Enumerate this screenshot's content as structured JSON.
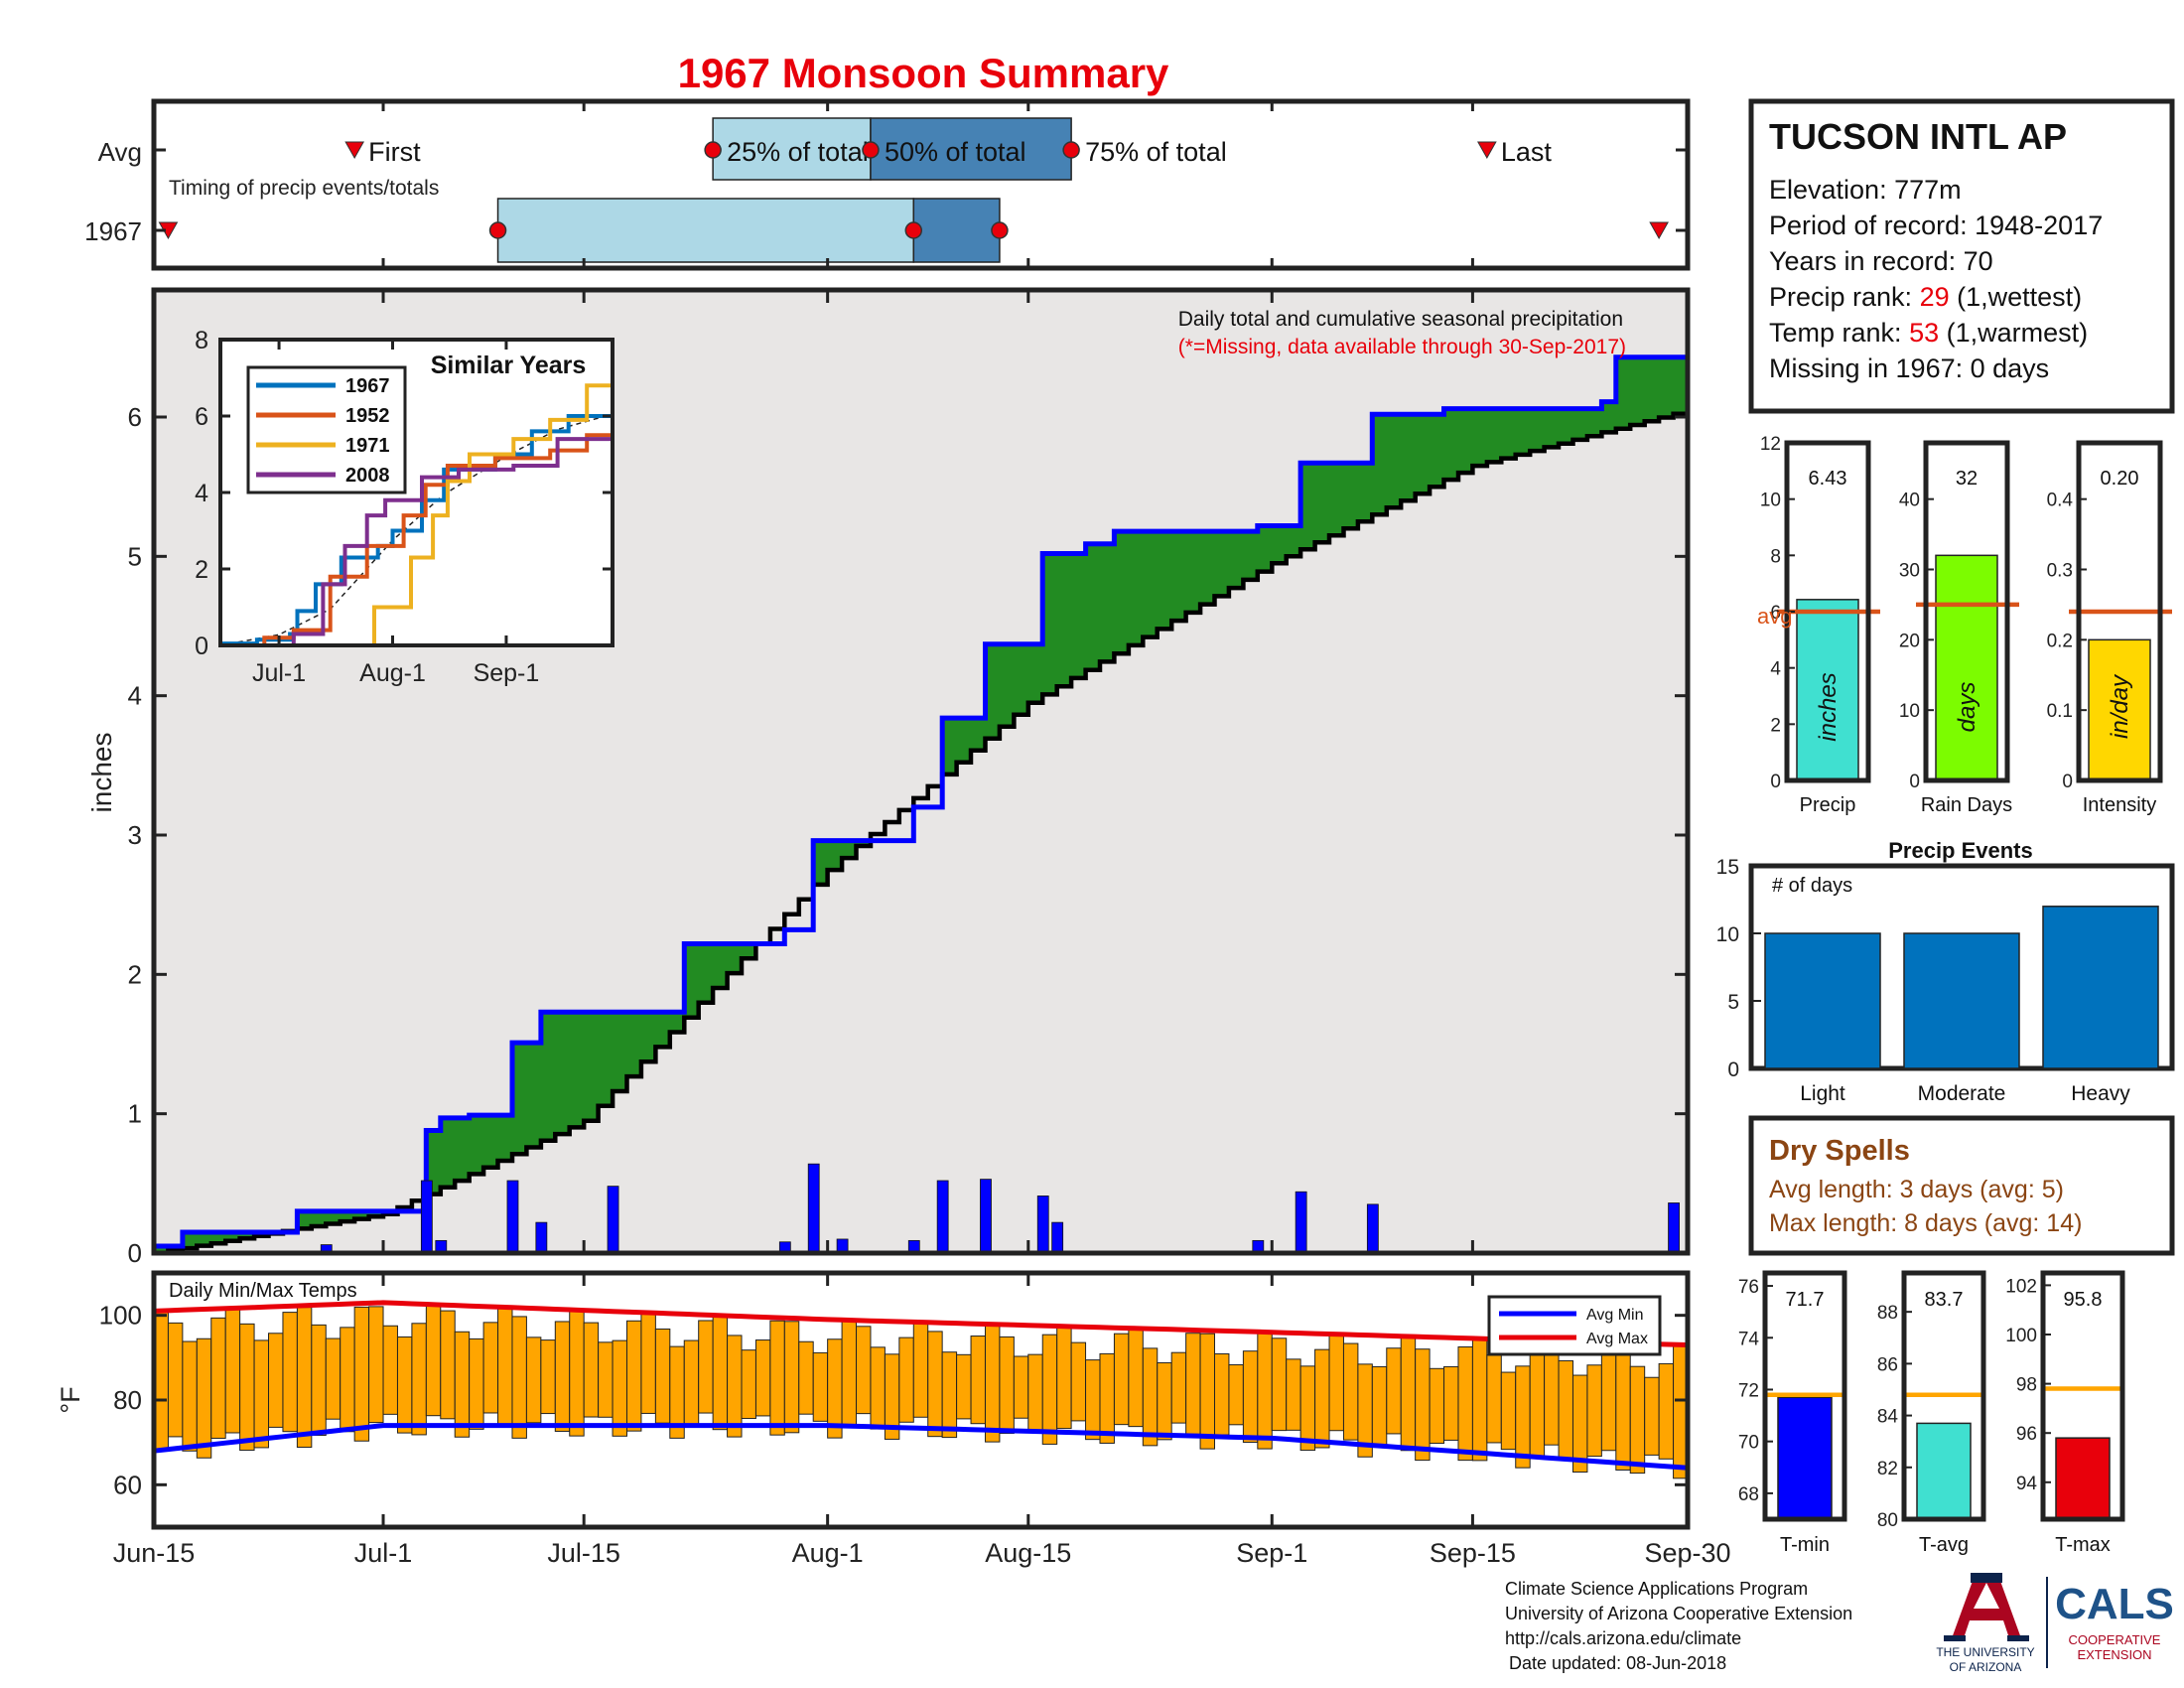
{
  "title": "1967 Monsoon Summary",
  "timeline": {
    "row_labels": [
      "Avg",
      "1967"
    ],
    "subtitle": "Timing of precip events/totals",
    "first_label": "First",
    "p25_label": "25% of total",
    "p50_label": "50% of total",
    "p75_label": "75% of total",
    "last_label": "Last",
    "avg": {
      "first": "Jun-29",
      "p25": "Jul-24",
      "p50": "Aug-4",
      "p75": "Aug-18",
      "last": "Sep-16"
    },
    "year": {
      "first": "Jun-16",
      "p25": "Jul-9",
      "p50": "Aug-7",
      "p75": "Aug-13",
      "last": "Sep-28"
    }
  },
  "station": {
    "name": "TUCSON INTL AP",
    "elevation": "Elevation: 777m",
    "period": "Period of record: 1948-2017",
    "years": "Years in record: 70",
    "precip_rank_label": "Precip rank: ",
    "precip_rank_value": "29",
    "precip_rank_note": " (1,wettest)",
    "temp_rank_label": "Temp rank: ",
    "temp_rank_value": "53",
    "temp_rank_note": " (1,warmest)",
    "missing": "Missing in 1967: 0 days"
  },
  "main_plot": {
    "ylabel": "inches",
    "note": "Daily total and cumulative seasonal precipitation",
    "missing_note": "(*=Missing, data available through 30-Sep-2017)",
    "x_ticks": [
      "Jun-15",
      "Jul-1",
      "Jul-15",
      "Aug-1",
      "Aug-15",
      "Sep-1",
      "Sep-15",
      "Sep-30"
    ],
    "y_ticks": [
      "0",
      "1",
      "2",
      "3",
      "4",
      "5",
      "6"
    ]
  },
  "inset": {
    "title": "Similar Years",
    "x_ticks": [
      "Jul-1",
      "Aug-1",
      "Sep-1"
    ],
    "y_ticks": [
      "0",
      "2",
      "4",
      "6",
      "8"
    ],
    "legend": [
      "1967",
      "1952",
      "1971",
      "2008"
    ]
  },
  "stat_bars": {
    "avg_label": "avg",
    "panels": [
      {
        "label": "Precip",
        "value_text": "6.43",
        "unit": "inches",
        "value": 6.43,
        "avg": 6.0,
        "ylim": [
          0,
          12
        ],
        "ticks": [
          "0",
          "2",
          "4",
          "6",
          "8",
          "10",
          "12"
        ]
      },
      {
        "label": "Rain Days",
        "value_text": "32",
        "unit": "days",
        "value": 32,
        "avg": 25,
        "ylim": [
          0,
          48
        ],
        "ticks": [
          "0",
          "10",
          "20",
          "30",
          "40"
        ]
      },
      {
        "label": "Intensity",
        "value_text": "0.20",
        "unit": "in/day",
        "value": 0.2,
        "avg": 0.24,
        "ylim": [
          0,
          0.48
        ],
        "ticks": [
          "0",
          "0.1",
          "0.2",
          "0.3",
          "0.4"
        ]
      }
    ]
  },
  "precip_events": {
    "title": "Precip Events",
    "ylabel": "# of days",
    "categories": [
      "Light",
      "Moderate",
      "Heavy"
    ],
    "values": [
      10,
      10,
      12
    ],
    "y_ticks": [
      "0",
      "5",
      "10",
      "15"
    ]
  },
  "dry_spells": {
    "title": "Dry Spells",
    "avg_length": "Avg length: 3 days (avg: 5)",
    "max_length": "Max length: 8 days (avg: 14)"
  },
  "temp_plot": {
    "title": "Daily Min/Max Temps",
    "ylabel": "°F",
    "legend_min": "Avg Min",
    "legend_max": "Avg Max",
    "y_ticks": [
      "60",
      "80",
      "100"
    ]
  },
  "temp_bars": {
    "panels": [
      {
        "label": "T-min",
        "value_text": "71.7",
        "value": 71.7,
        "avg": 71.8,
        "ylim": [
          67,
          76.5
        ],
        "ticks": [
          "68",
          "70",
          "72",
          "74",
          "76"
        ]
      },
      {
        "label": "T-avg",
        "value_text": "83.7",
        "value": 83.7,
        "avg": 84.8,
        "ylim": [
          80,
          89.5
        ],
        "ticks": [
          "80",
          "82",
          "84",
          "86",
          "88"
        ]
      },
      {
        "label": "T-max",
        "value_text": "95.8",
        "value": 95.8,
        "avg": 97.8,
        "ylim": [
          92.5,
          102.5
        ],
        "ticks": [
          "94",
          "96",
          "98",
          "100",
          "102"
        ]
      }
    ]
  },
  "footer": {
    "line1": "Climate Science Applications Program",
    "line2": "University of Arizona Cooperative Extension",
    "line3": "http://cals.arizona.edu/climate",
    "line4": "Date updated: 08-Jun-2018"
  },
  "logos": {
    "ua_line1": "THE UNIVERSITY",
    "ua_line2": "OF ARIZONA",
    "cals": "CALS",
    "cals_sub1": "COOPERATIVE",
    "cals_sub2": "EXTENSION"
  },
  "colors": {
    "title_red": "#e8000b",
    "rank_red": "#e8000b",
    "dry_brown": "#8b4513",
    "green_fill": "#228b22",
    "blue_line": "#0000ff",
    "avg_orange": "#d95319",
    "bar_blue": "#0072bd",
    "temp_orange": "#ffa500"
  },
  "chart_data": [
    {
      "type": "area",
      "title": "Daily total and cumulative seasonal precipitation",
      "ylabel": "inches",
      "ylim": [
        0,
        7
      ],
      "xlim": [
        "Jun-15",
        "Sep-30"
      ],
      "series": [
        {
          "name": "1967",
          "x": [
            "Jun-15",
            "Jun-17",
            "Jun-17",
            "Jun-25",
            "Jun-25",
            "Jul-4",
            "Jul-4",
            "Jul-5",
            "Jul-5",
            "Jul-7",
            "Jul-7",
            "Jul-10",
            "Jul-10",
            "Jul-12",
            "Jul-12",
            "Jul-22",
            "Jul-22",
            "Jul-29",
            "Jul-29",
            "Jul-31",
            "Jul-31",
            "Aug-7",
            "Aug-7",
            "Aug-9",
            "Aug-9",
            "Aug-12",
            "Aug-12",
            "Aug-16",
            "Aug-16",
            "Aug-19",
            "Aug-19",
            "Aug-21",
            "Aug-21",
            "Aug-31",
            "Aug-31",
            "Sep-3",
            "Sep-3",
            "Sep-8",
            "Sep-8",
            "Sep-13",
            "Sep-13",
            "Sep-24",
            "Sep-24",
            "Sep-25",
            "Sep-25",
            "Sep-30"
          ],
          "values": [
            0.05,
            0.05,
            0.15,
            0.15,
            0.3,
            0.3,
            0.88,
            0.88,
            0.97,
            0.97,
            0.99,
            0.99,
            1.51,
            1.51,
            1.73,
            1.73,
            2.22,
            2.22,
            2.32,
            2.32,
            2.96,
            2.96,
            3.2,
            3.2,
            3.84,
            3.84,
            4.37,
            4.37,
            5.02,
            5.02,
            5.09,
            5.09,
            5.18,
            5.18,
            5.22,
            5.22,
            5.67,
            5.67,
            6.02,
            6.02,
            6.06,
            6.06,
            6.11,
            6.11,
            6.43,
            6.43
          ]
        },
        {
          "name": "Avg cumulative",
          "x": [
            "Jun-15",
            "Jul-1",
            "Jul-15",
            "Aug-1",
            "Aug-15",
            "Sep-1",
            "Sep-15",
            "Sep-30"
          ],
          "values": [
            0.0,
            0.28,
            0.95,
            2.75,
            3.95,
            4.95,
            5.65,
            6.05
          ]
        }
      ],
      "daily_bars": {
        "x": [
          "Jun-27",
          "Jul-4",
          "Jul-5",
          "Jul-10",
          "Jul-12",
          "Jul-17",
          "Jul-29",
          "Jul-31",
          "Aug-2",
          "Aug-7",
          "Aug-9",
          "Aug-12",
          "Aug-16",
          "Aug-17",
          "Aug-31",
          "Sep-3",
          "Sep-8",
          "Sep-29"
        ],
        "values": [
          0.06,
          0.52,
          0.09,
          0.52,
          0.22,
          0.48,
          0.08,
          0.64,
          0.1,
          0.09,
          0.52,
          0.53,
          0.41,
          0.22,
          0.09,
          0.44,
          0.35,
          0.36
        ]
      }
    },
    {
      "type": "line",
      "title": "Similar Years",
      "x_ticks": [
        "Jul-1",
        "Aug-1",
        "Sep-1"
      ],
      "ylim": [
        0,
        8
      ],
      "series": [
        {
          "name": "1967",
          "end_value": 6.43
        },
        {
          "name": "1952",
          "end_value": 5.6
        },
        {
          "name": "1971",
          "end_value": 7.2
        },
        {
          "name": "2008",
          "end_value": 5.7
        }
      ]
    },
    {
      "type": "bar",
      "title": "Precip Events",
      "ylabel": "# of days",
      "categories": [
        "Light",
        "Moderate",
        "Heavy"
      ],
      "values": [
        10,
        10,
        12
      ],
      "ylim": [
        0,
        15
      ]
    },
    {
      "type": "bar",
      "title": "Daily Min/Max Temps",
      "ylabel": "°F",
      "ylim": [
        50,
        110
      ],
      "series": [
        {
          "name": "Avg Min",
          "x": [
            "Jun-15",
            "Jul-1",
            "Aug-1",
            "Sep-1",
            "Sep-30"
          ],
          "values": [
            68,
            74,
            74,
            71,
            64
          ]
        },
        {
          "name": "Avg Max",
          "x": [
            "Jun-15",
            "Jul-1",
            "Aug-1",
            "Sep-1",
            "Sep-30"
          ],
          "values": [
            101,
            103,
            99,
            96,
            93
          ]
        }
      ]
    }
  ]
}
